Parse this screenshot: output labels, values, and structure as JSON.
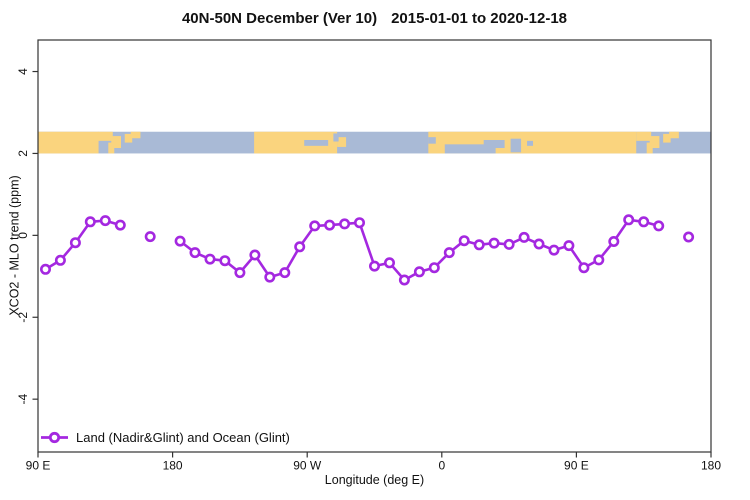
{
  "chart_data": {
    "type": "line",
    "title_parts": [
      "40N-50N December (Ver 10)",
      "2015-01-01 to 2020-12-18"
    ],
    "xlabel": "Longitude (deg E)",
    "ylabel": "XCO2 - MLO trend (ppm)",
    "xlim": [
      90,
      540
    ],
    "ylim": [
      -5.29,
      4.77
    ],
    "x_ticks": [
      {
        "value": 90,
        "label": "90 E"
      },
      {
        "value": 180,
        "label": "180"
      },
      {
        "value": 270,
        "label": "90 W"
      },
      {
        "value": 360,
        "label": "0"
      },
      {
        "value": 450,
        "label": "90 E"
      },
      {
        "value": 540,
        "label": "180"
      }
    ],
    "y_ticks": [
      {
        "value": 4,
        "label": "4"
      },
      {
        "value": 2,
        "label": "2"
      },
      {
        "value": 0,
        "label": "0"
      },
      {
        "value": -2,
        "label": "-2"
      },
      {
        "value": -4,
        "label": "-4"
      }
    ],
    "grid": false,
    "legend_position": "bottom-left",
    "legend": [
      {
        "label": "Land (Nadir&Glint) and Ocean (Glint)",
        "color": "#a428e0",
        "marker": "open-circle"
      }
    ],
    "series": [
      {
        "name": "Land (Nadir&Glint) and Ocean (Glint)",
        "color": "#a428e0",
        "marker": "open-circle",
        "segments": [
          [
            [
              95,
              -0.83
            ],
            [
              105,
              -0.61
            ],
            [
              115,
              -0.18
            ],
            [
              125,
              0.33
            ],
            [
              135,
              0.36
            ],
            [
              145,
              0.25
            ]
          ],
          [
            [
              165,
              -0.03
            ]
          ],
          [
            [
              185,
              -0.14
            ],
            [
              195,
              -0.42
            ],
            [
              205,
              -0.58
            ],
            [
              215,
              -0.62
            ],
            [
              225,
              -0.91
            ],
            [
              235,
              -0.48
            ],
            [
              245,
              -1.02
            ],
            [
              255,
              -0.91
            ],
            [
              265,
              -0.28
            ],
            [
              275,
              0.23
            ],
            [
              285,
              0.25
            ],
            [
              295,
              0.28
            ],
            [
              305,
              0.31
            ],
            [
              315,
              -0.75
            ],
            [
              325,
              -0.67
            ],
            [
              335,
              -1.09
            ],
            [
              345,
              -0.89
            ],
            [
              355,
              -0.79
            ],
            [
              365,
              -0.42
            ],
            [
              375,
              -0.13
            ],
            [
              385,
              -0.23
            ],
            [
              395,
              -0.19
            ],
            [
              405,
              -0.22
            ],
            [
              415,
              -0.05
            ],
            [
              425,
              -0.21
            ],
            [
              435,
              -0.36
            ],
            [
              445,
              -0.25
            ],
            [
              455,
              -0.79
            ],
            [
              465,
              -0.6
            ],
            [
              475,
              -0.15
            ],
            [
              485,
              0.38
            ],
            [
              495,
              0.33
            ],
            [
              505,
              0.23
            ]
          ],
          [
            [
              525,
              -0.04
            ]
          ]
        ]
      }
    ],
    "map_band": {
      "ylim": [
        2.0,
        2.53
      ],
      "ocean_color": "#a9bad6",
      "land_color": "#fad47e",
      "land": [
        [
          90,
          130.5,
          0,
          1
        ],
        [
          130,
          140,
          0.58,
          1
        ],
        [
          137,
          141,
          0,
          0.5
        ],
        [
          139,
          145.5,
          0.25,
          0.8
        ],
        [
          148,
          153,
          0.5,
          0.9
        ],
        [
          152,
          158.5,
          0.7,
          1
        ],
        [
          234.5,
          290,
          0,
          1
        ],
        [
          290,
          296,
          0.3,
          0.75
        ],
        [
          351,
          490,
          0,
          1
        ],
        [
          490,
          500,
          0.58,
          1
        ],
        [
          497,
          501,
          0,
          0.5
        ],
        [
          499,
          505.5,
          0.25,
          0.8
        ],
        [
          508,
          513,
          0.5,
          0.9
        ],
        [
          512,
          518.5,
          0.7,
          1
        ]
      ],
      "water": [
        [
          268,
          284,
          0.35,
          0.62
        ],
        [
          287.5,
          291,
          0.55,
          0.92
        ],
        [
          351,
          356,
          0.45,
          0.75
        ],
        [
          362,
          396,
          0,
          0.42
        ],
        [
          388,
          402,
          0.25,
          0.62
        ],
        [
          406,
          413,
          0.05,
          0.68
        ],
        [
          417,
          421,
          0.35,
          0.58
        ]
      ]
    }
  }
}
